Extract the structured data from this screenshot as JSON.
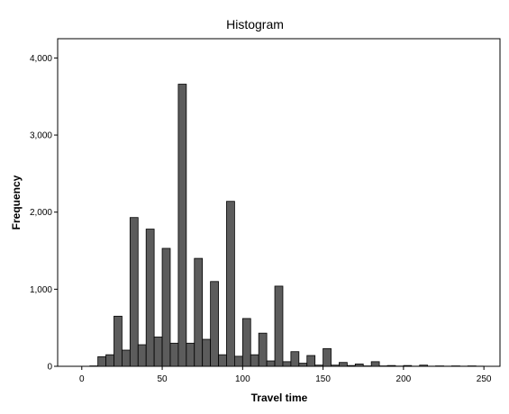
{
  "chart_data": {
    "type": "bar",
    "title": "Histogram",
    "xlabel": "Travel time",
    "ylabel": "Frequency",
    "xlim": [
      -15,
      260
    ],
    "ylim": [
      0,
      4250
    ],
    "x_ticks": [
      0,
      50,
      100,
      150,
      200,
      250
    ],
    "y_ticks": [
      0,
      1000,
      2000,
      3000,
      4000
    ],
    "y_tick_labels": [
      "0",
      "1,000",
      "2,000",
      "3,000",
      "4,000"
    ],
    "bin_width": 5,
    "bin_starts": [
      5,
      10,
      15,
      20,
      25,
      30,
      35,
      40,
      45,
      50,
      55,
      60,
      65,
      70,
      75,
      80,
      85,
      90,
      95,
      100,
      105,
      110,
      115,
      120,
      125,
      130,
      135,
      140,
      145,
      150,
      155,
      160,
      165,
      170,
      175,
      180,
      185,
      190,
      195,
      200,
      205,
      210,
      215,
      220,
      225,
      230,
      235,
      240,
      245
    ],
    "values": [
      5,
      125,
      150,
      650,
      210,
      1930,
      280,
      1780,
      380,
      1530,
      300,
      3660,
      300,
      1400,
      350,
      1100,
      150,
      2140,
      130,
      620,
      150,
      430,
      70,
      1040,
      60,
      190,
      40,
      140,
      15,
      230,
      15,
      50,
      10,
      30,
      5,
      60,
      5,
      10,
      3,
      10,
      2,
      15,
      2,
      5,
      2,
      5,
      2,
      5,
      2
    ],
    "grid": false
  }
}
